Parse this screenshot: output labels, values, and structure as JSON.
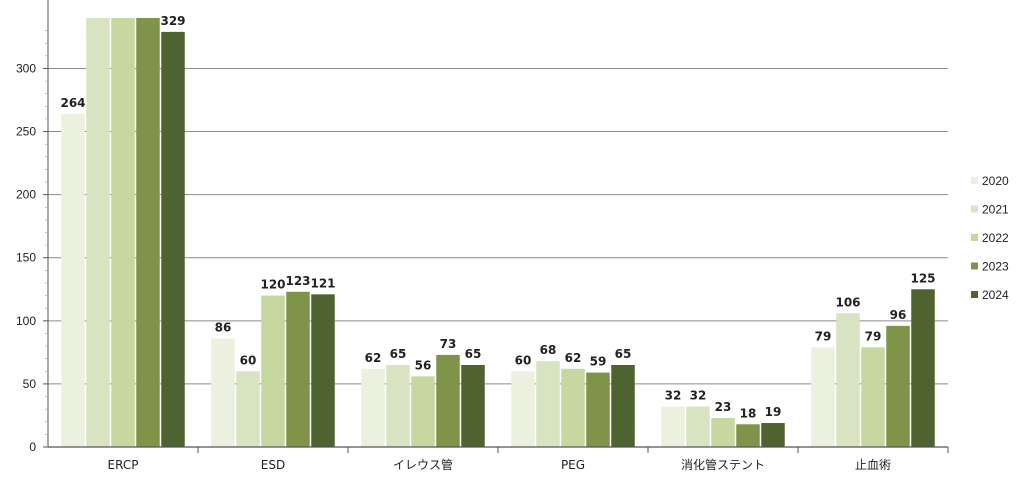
{
  "chart_data": {
    "type": "bar",
    "categories": [
      "ERCP",
      "ESD",
      "イレウス管",
      "PEG",
      "消化管ステント",
      "止血術"
    ],
    "series": [
      {
        "name": "2020",
        "color": "#ebf0df",
        "values": [
          264,
          86,
          62,
          60,
          32,
          79
        ],
        "labels": [
          "264",
          "86",
          "62",
          "60",
          "32",
          "79"
        ]
      },
      {
        "name": "2021",
        "color": "#d8e3c1",
        "values": [
          340,
          60,
          65,
          68,
          32,
          106
        ],
        "labels": [
          "",
          "60",
          "65",
          "68",
          "32",
          "106"
        ]
      },
      {
        "name": "2022",
        "color": "#c6d7a0",
        "values": [
          340,
          120,
          56,
          62,
          23,
          79
        ],
        "labels": [
          "",
          "120",
          "56",
          "62",
          "23",
          "79"
        ]
      },
      {
        "name": "2023",
        "color": "#7f9448",
        "values": [
          340,
          123,
          73,
          59,
          18,
          96
        ],
        "labels": [
          "",
          "123",
          "73",
          "59",
          "18",
          "96"
        ]
      },
      {
        "name": "2024",
        "color": "#4f6330",
        "values": [
          329,
          121,
          65,
          65,
          19,
          125
        ],
        "labels": [
          "329",
          "121",
          "65",
          "65",
          "19",
          "125"
        ]
      }
    ],
    "yticks": [
      "0",
      "50",
      "100",
      "150",
      "200",
      "250",
      "300"
    ],
    "ylim": [
      0,
      340
    ],
    "grid": true,
    "legend": "right"
  }
}
